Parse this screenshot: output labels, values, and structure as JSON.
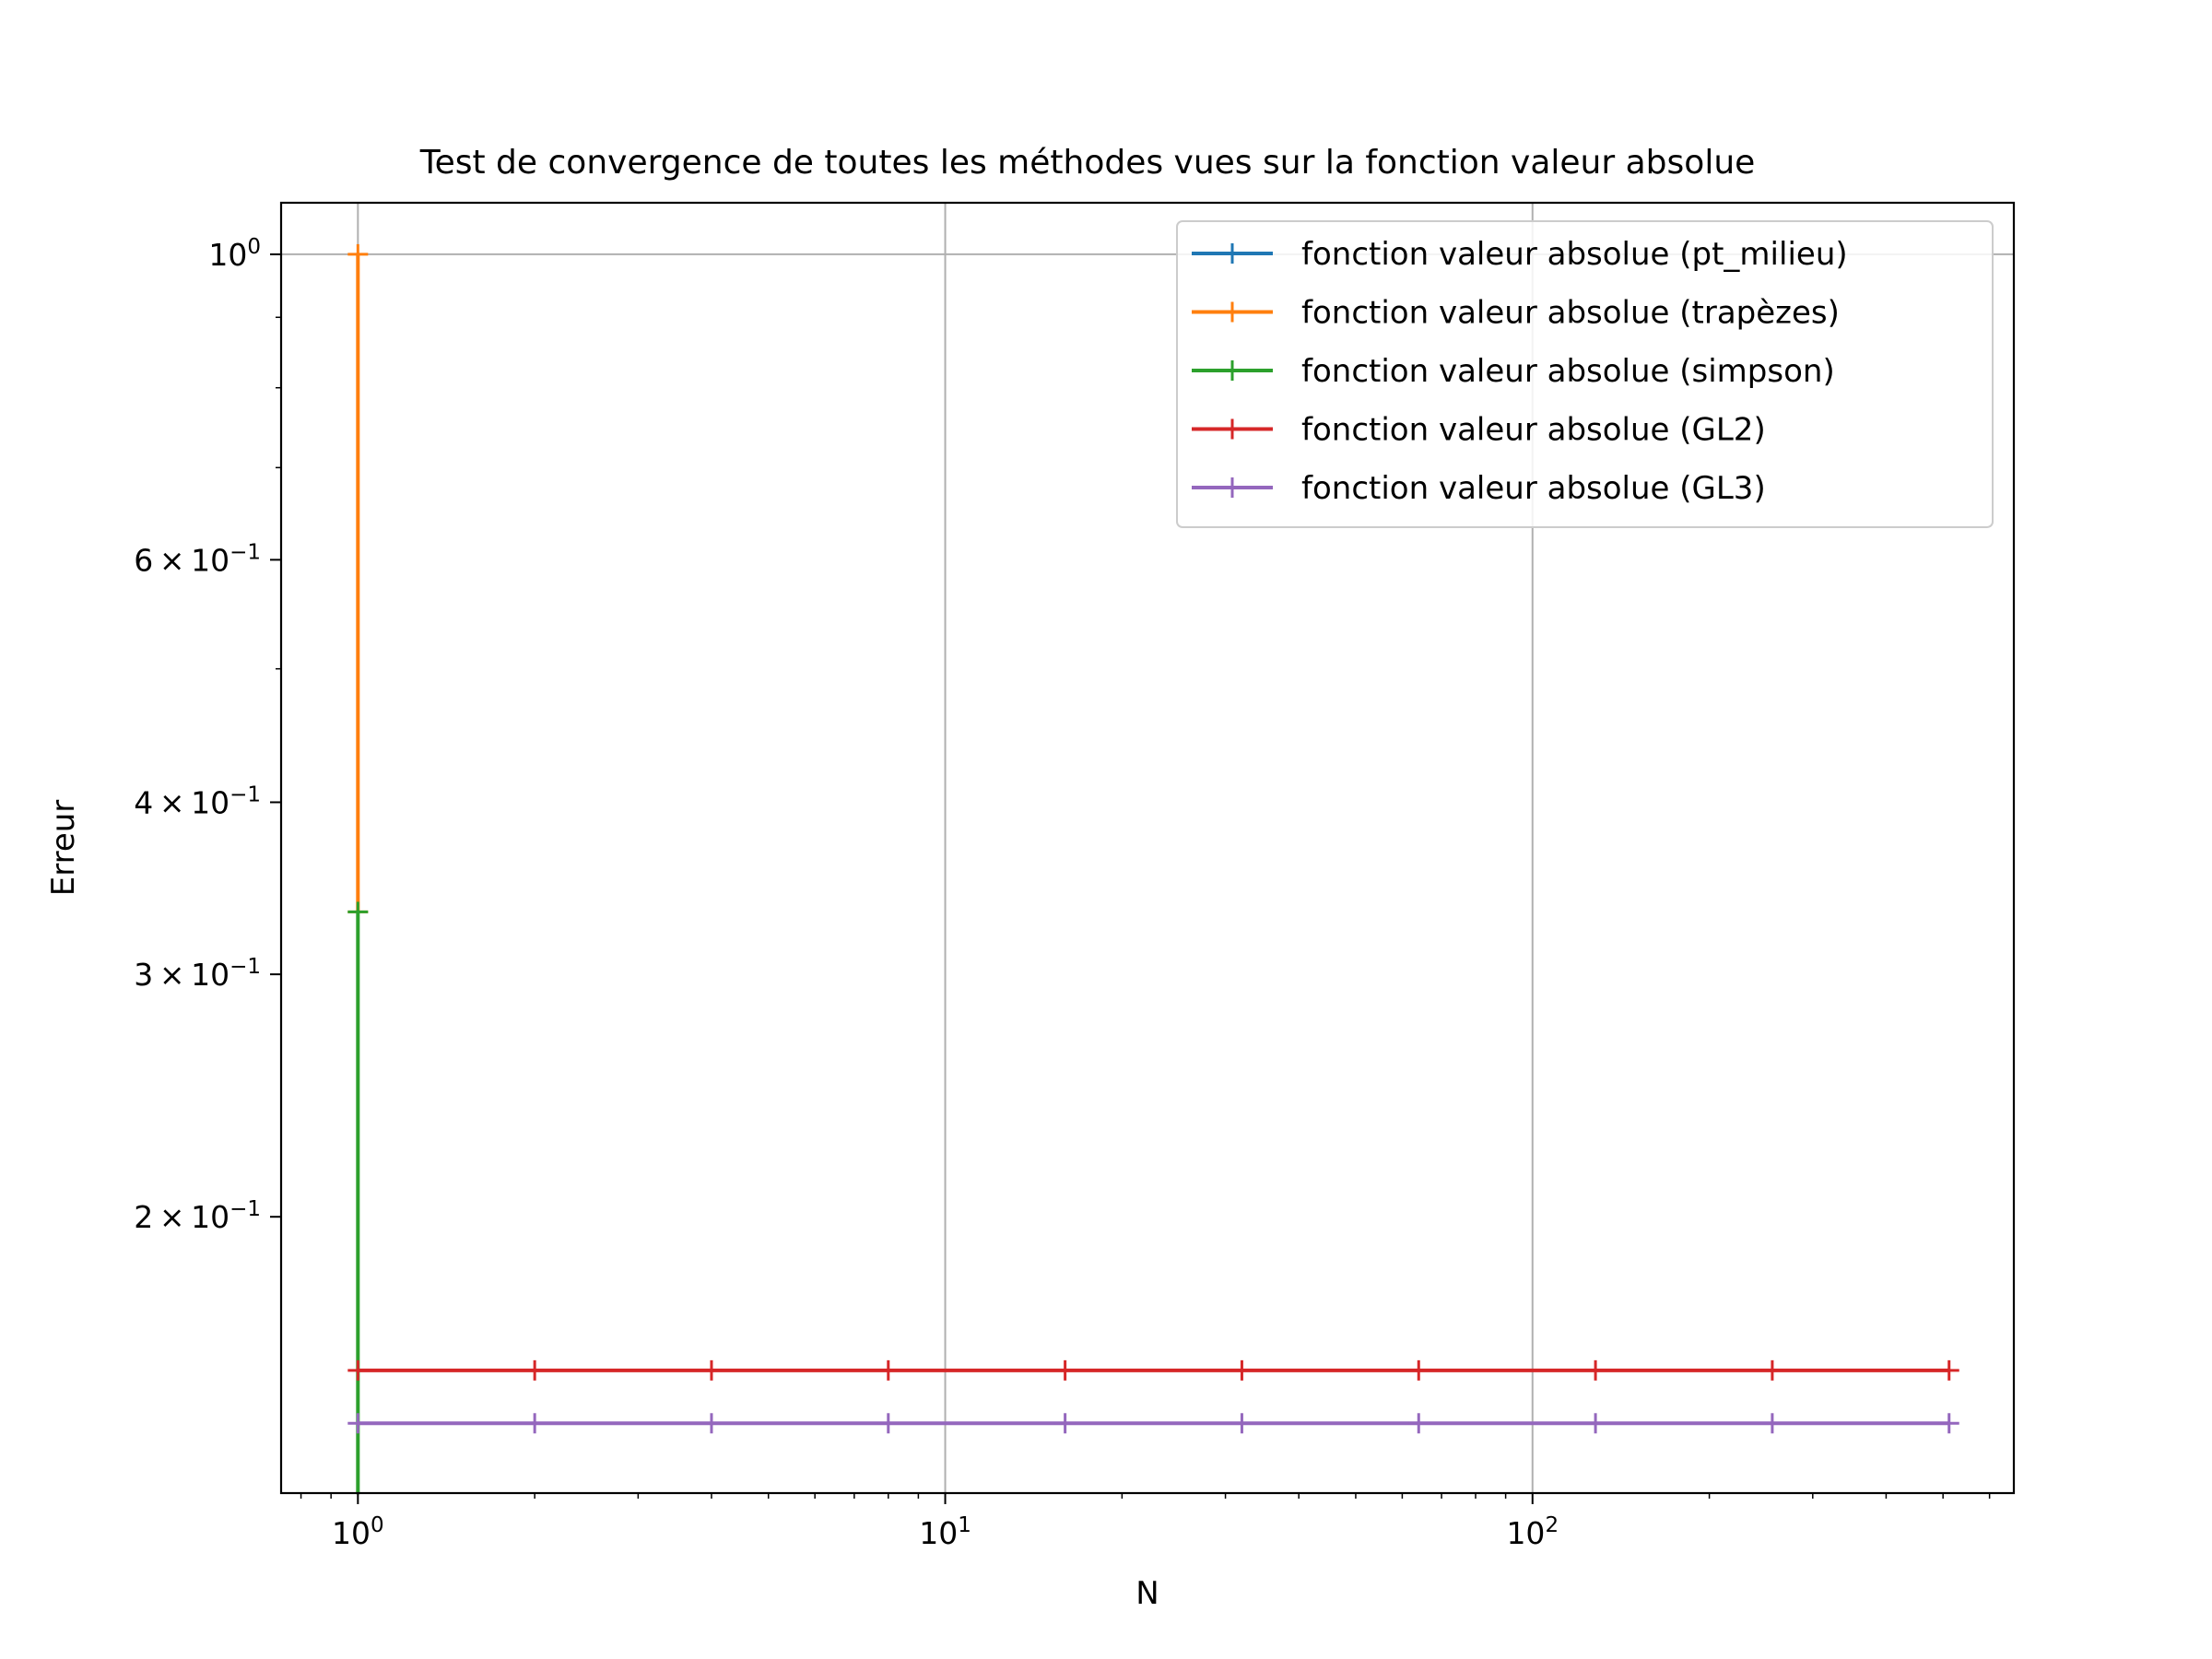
{
  "chart_data": {
    "type": "line",
    "title": "Test de convergence de toutes les méthodes vues sur la fonction valeur absolue",
    "xlabel": "N",
    "ylabel": "Erreur",
    "xscale": "log",
    "yscale": "log",
    "xlim": [
      0.74,
      660
    ],
    "ylim": [
      0.126,
      1.09
    ],
    "grid": true,
    "grid_scope": "major",
    "legend_position": "top-right",
    "marker": "+",
    "x_ticks": [
      {
        "value": 1,
        "base": "10",
        "exp": "0"
      },
      {
        "value": 10,
        "base": "10",
        "exp": "1"
      },
      {
        "value": 100,
        "base": "10",
        "exp": "2"
      }
    ],
    "y_ticks": [
      {
        "value": 1.0,
        "mantissa": "",
        "base": "10",
        "exp": "0"
      },
      {
        "value": 0.6,
        "mantissa": "6",
        "base": "10",
        "exp": "−1"
      },
      {
        "value": 0.4,
        "mantissa": "4",
        "base": "10",
        "exp": "−1"
      },
      {
        "value": 0.3,
        "mantissa": "3",
        "base": "10",
        "exp": "−1"
      },
      {
        "value": 0.2,
        "mantissa": "2",
        "base": "10",
        "exp": "−1"
      }
    ],
    "series": [
      {
        "name": "fonction valeur absolue (pt_milieu)",
        "color": "#1f77b4",
        "x": [
          1
        ],
        "y": [
          0.0
        ]
      },
      {
        "name": "fonction valeur absolue (trapèzes)",
        "color": "#ff7f0e",
        "x": [
          1,
          1
        ],
        "y": [
          1.0,
          0.333
        ]
      },
      {
        "name": "fonction valeur absolue (simpson)",
        "color": "#2ca02c",
        "x": [
          1,
          1
        ],
        "y": [
          0.333,
          0.0
        ]
      },
      {
        "name": "fonction valeur absolue (GL2)",
        "color": "#d62728",
        "x": [
          1,
          2,
          4,
          8,
          16,
          32,
          64,
          128,
          256,
          512
        ],
        "y": [
          0.1547,
          0.1547,
          0.1547,
          0.1547,
          0.1547,
          0.1547,
          0.1547,
          0.1547,
          0.1547,
          0.1547
        ]
      },
      {
        "name": "fonction valeur absolue (GL3)",
        "color": "#9467bd",
        "x": [
          1,
          2,
          4,
          8,
          16,
          32,
          64,
          128,
          256,
          512
        ],
        "y": [
          0.1416,
          0.1416,
          0.1416,
          0.1416,
          0.1416,
          0.1416,
          0.1416,
          0.1416,
          0.1416,
          0.1416
        ]
      }
    ]
  }
}
